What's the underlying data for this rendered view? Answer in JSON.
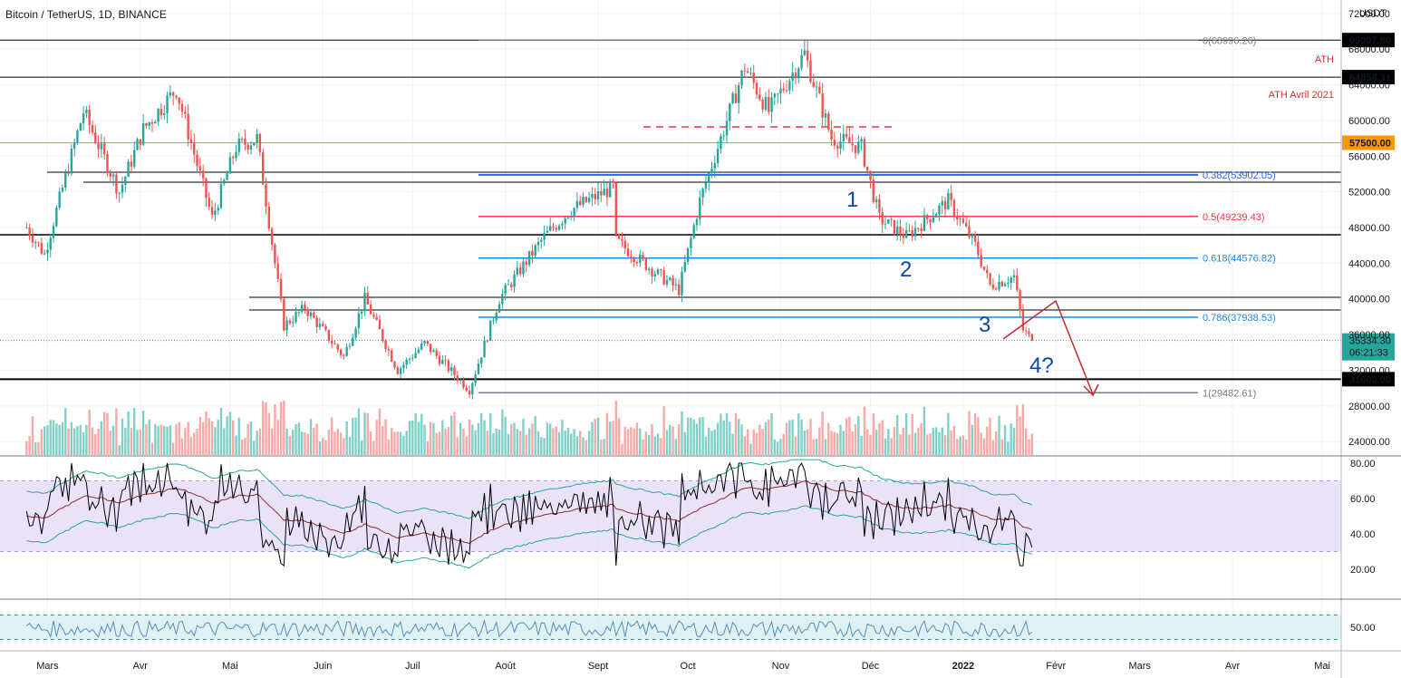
{
  "header": {
    "title": "Bitcoin / TetherUS, 1D, BINANCE"
  },
  "chart_data": {
    "type": "candlestick",
    "symbol": "Bitcoin / TetherUS",
    "timeframe": "1D",
    "exchange": "BINANCE",
    "currency": "USDT",
    "ylim": [
      22500,
      73500
    ],
    "y_ticks": [
      "24000.00",
      "28000.00",
      "32000.00",
      "36000.00",
      "40000.00",
      "44000.00",
      "48000.00",
      "52000.00",
      "56000.00",
      "60000.00",
      "64000.00",
      "68000.00",
      "72000.00"
    ],
    "x_ticks": [
      "Mars",
      "Avr",
      "Mai",
      "Juin",
      "Juil",
      "Août",
      "Sept",
      "Oct",
      "Nov",
      "Déc",
      "2022",
      "Févr",
      "Mars",
      "Avr",
      "Mai"
    ],
    "last_price": "35334.30",
    "countdown": "06:21:33",
    "close_path": [
      {
        "x": "2021-02-22",
        "y": 48000
      },
      {
        "x": "2021-02-28",
        "y": 45000
      },
      {
        "x": "2021-03-13",
        "y": 61000
      },
      {
        "x": "2021-03-25",
        "y": 52000
      },
      {
        "x": "2021-04-02",
        "y": 59000
      },
      {
        "x": "2021-04-13",
        "y": 63500
      },
      {
        "x": "2021-04-25",
        "y": 49000
      },
      {
        "x": "2021-05-03",
        "y": 57000
      },
      {
        "x": "2021-05-10",
        "y": 58000
      },
      {
        "x": "2021-05-19",
        "y": 37000
      },
      {
        "x": "2021-05-26",
        "y": 39000
      },
      {
        "x": "2021-06-08",
        "y": 33500
      },
      {
        "x": "2021-06-15",
        "y": 40000
      },
      {
        "x": "2021-06-26",
        "y": 32000
      },
      {
        "x": "2021-07-05",
        "y": 35000
      },
      {
        "x": "2021-07-20",
        "y": 29800
      },
      {
        "x": "2021-07-30",
        "y": 40000
      },
      {
        "x": "2021-08-14",
        "y": 47000
      },
      {
        "x": "2021-08-23",
        "y": 50000
      },
      {
        "x": "2021-09-06",
        "y": 52500
      },
      {
        "x": "2021-09-07",
        "y": 46500
      },
      {
        "x": "2021-09-20",
        "y": 43000
      },
      {
        "x": "2021-09-28",
        "y": 41000
      },
      {
        "x": "2021-10-05",
        "y": 51000
      },
      {
        "x": "2021-10-20",
        "y": 66000
      },
      {
        "x": "2021-10-28",
        "y": 61000
      },
      {
        "x": "2021-11-09",
        "y": 67500
      },
      {
        "x": "2021-11-18",
        "y": 58000
      },
      {
        "x": "2021-11-28",
        "y": 57000
      },
      {
        "x": "2021-12-04",
        "y": 49000
      },
      {
        "x": "2021-12-13",
        "y": 47000
      },
      {
        "x": "2021-12-27",
        "y": 51000
      },
      {
        "x": "2022-01-05",
        "y": 46000
      },
      {
        "x": "2022-01-10",
        "y": 41500
      },
      {
        "x": "2022-01-18",
        "y": 42500
      },
      {
        "x": "2022-01-21",
        "y": 36500
      },
      {
        "x": "2022-01-24",
        "y": 35334
      }
    ],
    "horizontal_levels": [
      {
        "label": "69007.80",
        "value": 69007.8,
        "color": "#000000"
      },
      {
        "label": "64854.31",
        "value": 64854.31,
        "color": "#000000"
      },
      {
        "label": "57500.00",
        "value": 57500.0,
        "color": "#ff9800"
      },
      {
        "label": "31000.00",
        "value": 31000.0,
        "color": "#000000"
      }
    ],
    "annotations": [
      {
        "text": "ATH",
        "color": "#d32f2f"
      },
      {
        "text": "ATH Avril 2021",
        "color": "#d32f2f"
      }
    ],
    "fib_levels": [
      {
        "label": "0(68996.26)",
        "value": 68996.26,
        "color": "#787b86"
      },
      {
        "label": "0.382(53902.05)",
        "value": 53902.05,
        "color": "#2962ff"
      },
      {
        "label": "0.5(49239.43)",
        "value": 49239.43,
        "color": "#f23645"
      },
      {
        "label": "0.618(44576.82)",
        "value": 44576.82,
        "color": "#1e88e5"
      },
      {
        "label": "0.786(37938.53)",
        "value": 37938.53,
        "color": "#1e88e5"
      },
      {
        "label": "1(29482.61)",
        "value": 29482.61,
        "color": "#787b86"
      }
    ],
    "wave_labels": [
      "1",
      "2",
      "3",
      "4?"
    ],
    "rsi_panel": {
      "ticks": [
        "80.00",
        "60.00",
        "40.00",
        "20.00"
      ],
      "band_upper": 70,
      "band_lower": 30
    },
    "bottom_panel": {
      "ticks": [
        "50.00"
      ]
    }
  }
}
